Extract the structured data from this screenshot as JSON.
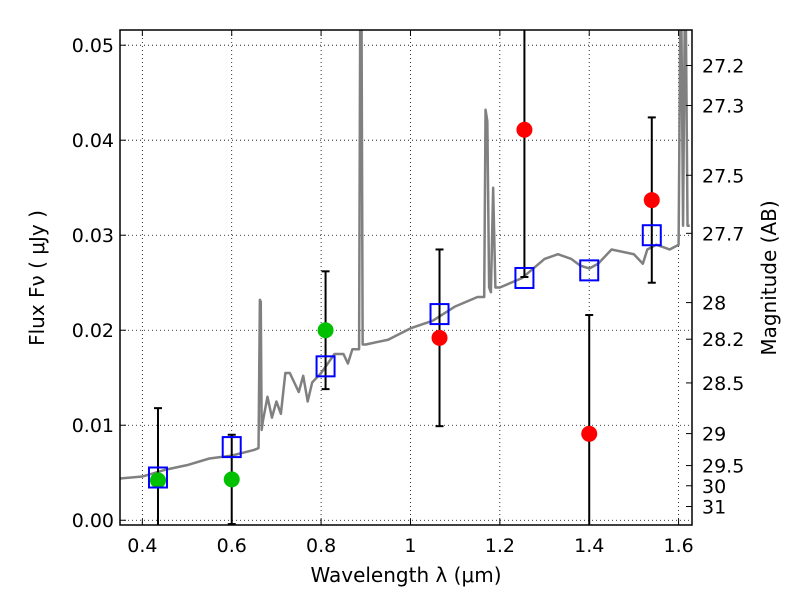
{
  "chart_data": {
    "type": "scatter",
    "title": "",
    "xlabel": "Wavelength  λ (μm)",
    "ylabel": "Flux  Fν  ( μJy )",
    "y2label": "Magnitude (AB)",
    "xlim": [
      0.35,
      1.63
    ],
    "ylim": [
      -0.0005,
      0.0516
    ],
    "grid": true,
    "xticks": [
      0.4,
      0.6,
      0.8,
      1.0,
      1.2,
      1.4,
      1.6
    ],
    "xtick_labels": [
      "0.4",
      "0.6",
      "0.8",
      "1",
      "1.2",
      "1.4",
      "1.6"
    ],
    "yticks": [
      0.0,
      0.01,
      0.02,
      0.03,
      0.04,
      0.05
    ],
    "ytick_labels": [
      "0.00",
      "0.01",
      "0.02",
      "0.03",
      "0.04",
      "0.05"
    ],
    "y2ticks": [
      27.2,
      27.3,
      27.5,
      27.7,
      28,
      28.2,
      28.5,
      29,
      29.5,
      30,
      31
    ],
    "y2tick_labels": [
      "27.2",
      "27.3",
      "27.5",
      "27.7",
      "28",
      "28.2",
      "28.5",
      "29",
      "29.5",
      "30",
      "31"
    ],
    "colors": {
      "spectrum": "#808080",
      "model": "#0000ff",
      "green": "#00c000",
      "red": "#ff0000",
      "errorbar": "#000000"
    },
    "spectrum": {
      "x": [
        0.35,
        0.4,
        0.45,
        0.5,
        0.55,
        0.6,
        0.65,
        0.66,
        0.663,
        0.665,
        0.667,
        0.67,
        0.68,
        0.69,
        0.7,
        0.71,
        0.72,
        0.73,
        0.75,
        0.76,
        0.77,
        0.78,
        0.8,
        0.83,
        0.85,
        0.86,
        0.87,
        0.885,
        0.888,
        0.89,
        0.893,
        0.9,
        0.95,
        1.0,
        1.05,
        1.1,
        1.15,
        1.165,
        1.168,
        1.172,
        1.176,
        1.18,
        1.185,
        1.19,
        1.195,
        1.2,
        1.25,
        1.3,
        1.33,
        1.36,
        1.38,
        1.4,
        1.42,
        1.45,
        1.5,
        1.52,
        1.53,
        1.55,
        1.58,
        1.6,
        1.605,
        1.61,
        1.615,
        1.62,
        1.625
      ],
      "y": [
        0.0044,
        0.0046,
        0.0053,
        0.0058,
        0.0065,
        0.0068,
        0.0074,
        0.0076,
        0.0232,
        0.023,
        0.0095,
        0.0105,
        0.013,
        0.0108,
        0.0125,
        0.0112,
        0.0155,
        0.0155,
        0.0135,
        0.0152,
        0.0125,
        0.0145,
        0.0155,
        0.0175,
        0.0175,
        0.0165,
        0.018,
        0.018,
        0.06,
        0.06,
        0.0185,
        0.0185,
        0.019,
        0.0202,
        0.021,
        0.0225,
        0.0235,
        0.0235,
        0.0432,
        0.042,
        0.0245,
        0.024,
        0.035,
        0.0245,
        0.0245,
        0.0245,
        0.0255,
        0.0275,
        0.028,
        0.0275,
        0.0268,
        0.0265,
        0.027,
        0.0285,
        0.028,
        0.027,
        0.0285,
        0.029,
        0.0285,
        0.029,
        0.06,
        0.031,
        0.06,
        0.031,
        0.031
      ]
    },
    "model_points": {
      "x": [
        0.435,
        0.6,
        0.81,
        1.065,
        1.255,
        1.4,
        1.54
      ],
      "y": [
        0.0045,
        0.0077,
        0.0162,
        0.0217,
        0.0255,
        0.0263,
        0.03
      ]
    },
    "green_points": {
      "x": [
        0.435,
        0.6,
        0.81
      ],
      "y": [
        0.0042,
        0.0043,
        0.02
      ],
      "err": [
        0.0076,
        0.0047,
        0.0062
      ]
    },
    "red_points": {
      "x": [
        1.065,
        1.255,
        1.4,
        1.54
      ],
      "y": [
        0.0192,
        0.0411,
        0.0091,
        0.0337
      ],
      "err": [
        0.0093,
        0.0155,
        0.0125,
        0.0087
      ]
    }
  }
}
